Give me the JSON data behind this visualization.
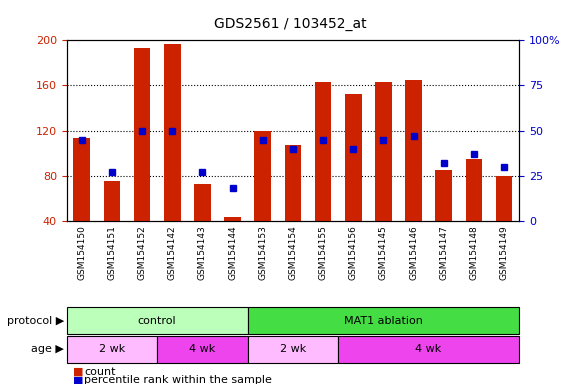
{
  "title": "GDS2561 / 103452_at",
  "samples": [
    "GSM154150",
    "GSM154151",
    "GSM154152",
    "GSM154142",
    "GSM154143",
    "GSM154144",
    "GSM154153",
    "GSM154154",
    "GSM154155",
    "GSM154156",
    "GSM154145",
    "GSM154146",
    "GSM154147",
    "GSM154148",
    "GSM154149"
  ],
  "red_values": [
    113,
    75,
    193,
    197,
    73,
    43,
    120,
    107,
    163,
    152,
    163,
    165,
    85,
    95,
    80
  ],
  "blue_values_pct": [
    45,
    27,
    50,
    50,
    27,
    18,
    45,
    40,
    45,
    40,
    45,
    47,
    32,
    37,
    30
  ],
  "ylim_left": [
    40,
    200
  ],
  "ylim_right": [
    0,
    100
  ],
  "yticks_left": [
    40,
    80,
    120,
    160,
    200
  ],
  "yticks_right": [
    0,
    25,
    50,
    75,
    100
  ],
  "red_color": "#cc2200",
  "blue_color": "#0000cc",
  "bar_width": 0.55,
  "protocol_groups": [
    {
      "label": "control",
      "start": 0,
      "end": 6,
      "color": "#bbffbb"
    },
    {
      "label": "MAT1 ablation",
      "start": 6,
      "end": 15,
      "color": "#44dd44"
    }
  ],
  "age_groups": [
    {
      "label": "2 wk",
      "start": 0,
      "end": 3,
      "color": "#ffbbff"
    },
    {
      "label": "4 wk",
      "start": 3,
      "end": 6,
      "color": "#ee44ee"
    },
    {
      "label": "2 wk",
      "start": 6,
      "end": 9,
      "color": "#ffbbff"
    },
    {
      "label": "4 wk",
      "start": 9,
      "end": 15,
      "color": "#ee44ee"
    }
  ],
  "bg_color": "#cccccc",
  "plot_bg": "#ffffff",
  "legend_items": [
    {
      "label": "count",
      "color": "#cc2200"
    },
    {
      "label": "percentile rank within the sample",
      "color": "#0000cc"
    }
  ],
  "ytick_right_labels": [
    "0",
    "25",
    "50",
    "75",
    "100%"
  ]
}
